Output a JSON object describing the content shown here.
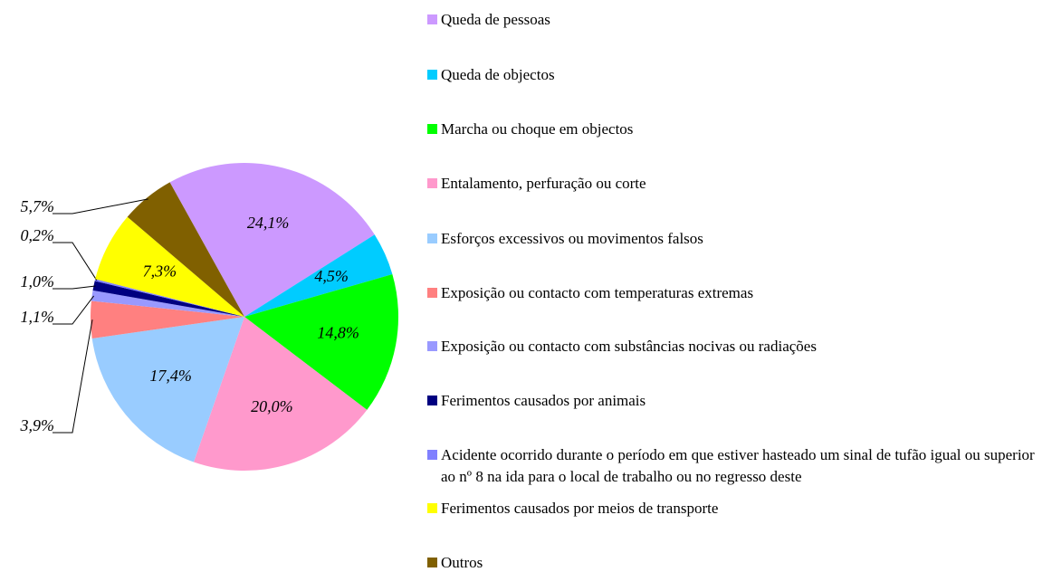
{
  "chart_data": {
    "type": "pie",
    "categories": [
      "Queda de pessoas",
      "Queda de objectos",
      "Marcha ou choque em objectos",
      "Entalamento, perfuração ou corte",
      "Esforços excessivos ou movimentos falsos",
      "Exposição ou contacto com temperaturas extremas",
      "Exposição ou contacto com substâncias nocivas ou radiações",
      "Ferimentos causados por animais",
      "Acidente ocorrido durante o período em que estiver hasteado um sinal de tufão igual ou superior ao nº 8 na ida para o local de trabalho ou no regresso deste",
      "Ferimentos causados por meios de transporte",
      "Outros"
    ],
    "values": [
      24.1,
      4.5,
      14.8,
      20.0,
      17.4,
      3.9,
      1.1,
      1.0,
      0.2,
      7.3,
      5.7
    ],
    "value_labels": [
      "24,1%",
      "4,5%",
      "14,8%",
      "20,0%",
      "17,4%",
      "3,9%",
      "1,1%",
      "1,0%",
      "0,2%",
      "7,3%",
      "5,7%"
    ],
    "colors": [
      "#cc99ff",
      "#00ccff",
      "#00ff00",
      "#ff99cc",
      "#99ccff",
      "#ff8080",
      "#9999ff",
      "#000080",
      "#8080ff",
      "#ffff00",
      "#806000"
    ],
    "legend": "right"
  }
}
